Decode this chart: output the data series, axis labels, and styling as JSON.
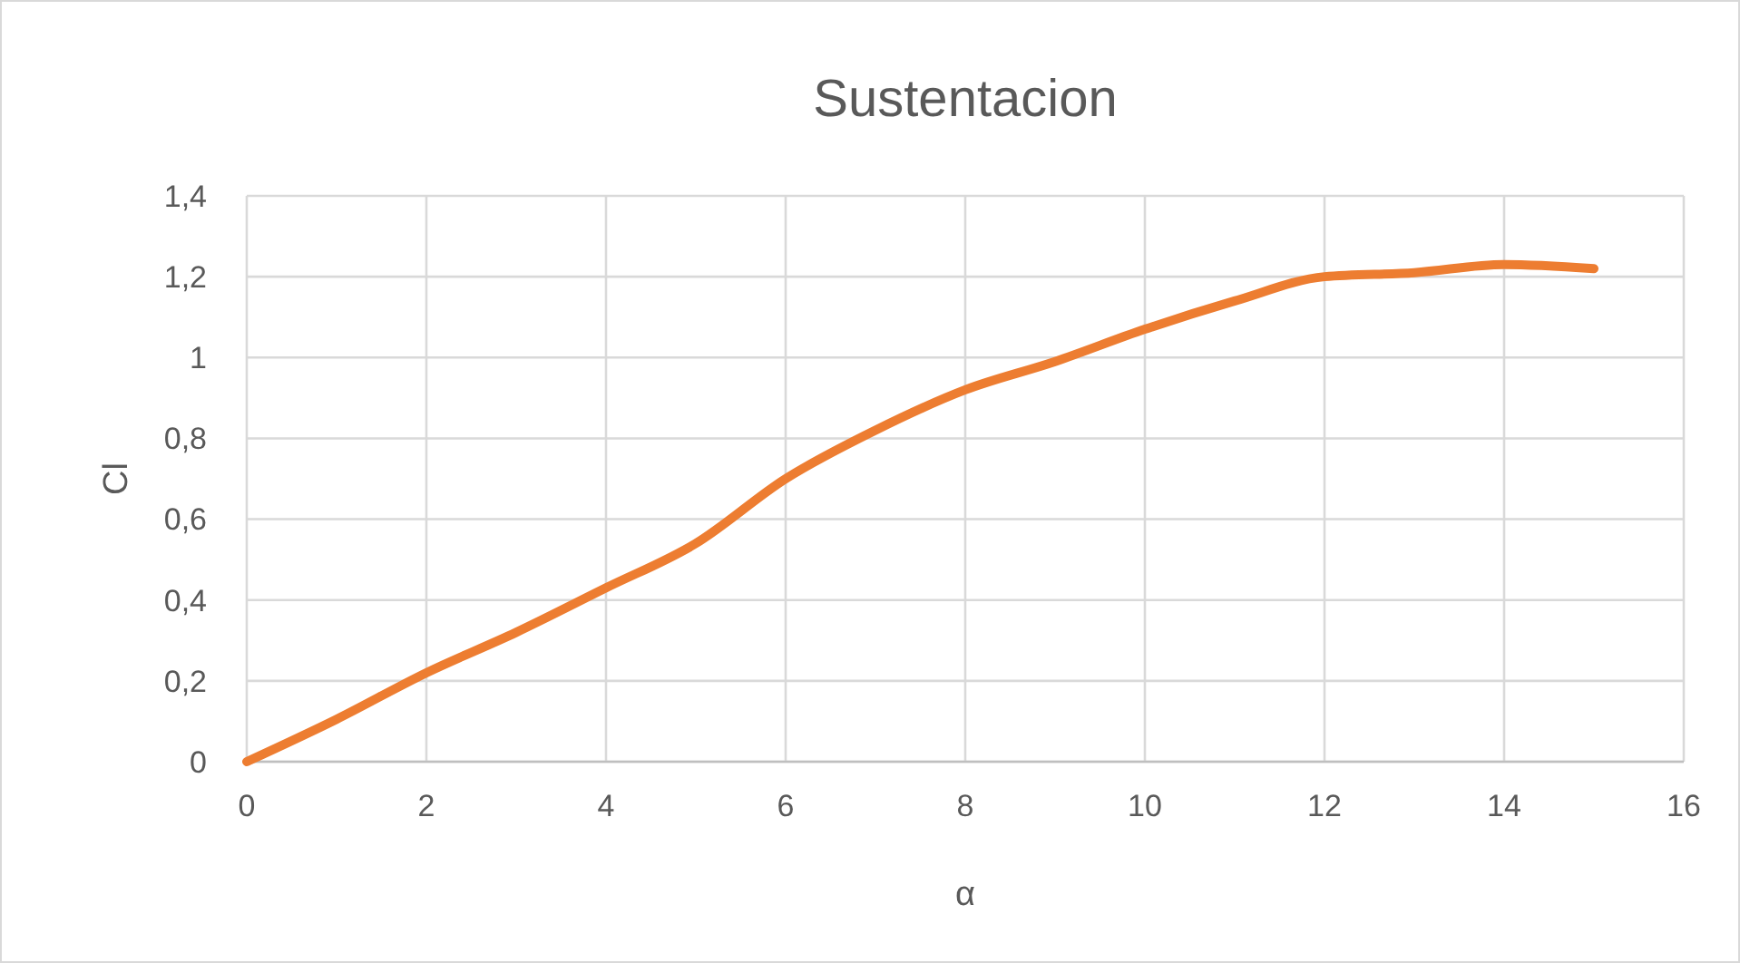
{
  "chart_data": {
    "type": "line",
    "title": "Sustentacion",
    "xlabel": "α",
    "ylabel": "Cl",
    "x": [
      0,
      1,
      2,
      3,
      4,
      5,
      6,
      7,
      8,
      9,
      10,
      11,
      12,
      13,
      14,
      15
    ],
    "series": [
      {
        "color": "#ed7d31",
        "values": [
          0,
          0.105,
          0.22,
          0.32,
          0.43,
          0.54,
          0.7,
          0.82,
          0.92,
          0.99,
          1.07,
          1.14,
          1.2,
          1.21,
          1.23,
          1.22
        ]
      }
    ],
    "xlim": [
      0,
      16
    ],
    "xticks": [
      0,
      2,
      4,
      6,
      8,
      10,
      12,
      14,
      16
    ],
    "ylim": [
      0,
      1.4
    ],
    "yticks": [
      0,
      {
        "value": 0.2,
        "label": "0,2"
      },
      {
        "value": 0.4,
        "label": "0,4"
      },
      {
        "value": 0.6,
        "label": "0,6"
      },
      {
        "value": 0.8,
        "label": "0,8"
      },
      1,
      {
        "value": 1.2,
        "label": "1,2"
      },
      {
        "value": 1.4,
        "label": "1,4"
      }
    ],
    "grid": true
  }
}
